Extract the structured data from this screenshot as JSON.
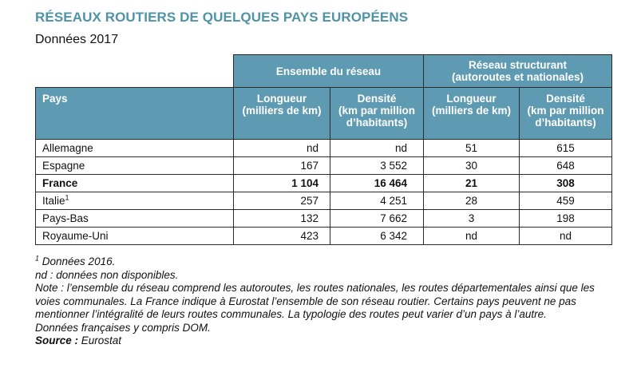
{
  "title": "RÉSEAUX ROUTIERS DE QUELQUES PAYS EUROPÉENS",
  "subtitle": "Données 2017",
  "table": {
    "group_headers": {
      "ensemble": "Ensemble du réseau",
      "structurant_line1": "Réseau structurant",
      "structurant_line2": "(autoroutes et nationales)"
    },
    "columns": {
      "pays": "Pays",
      "longueur_line1": "Longueur",
      "longueur_line2": "(milliers de km)",
      "densite_line1": "Densité",
      "densite_line2": "(km par million",
      "densite_line3": "d’habitants)"
    },
    "rows": [
      {
        "pays": "Allemagne",
        "sup": "",
        "ens_longueur": "nd",
        "ens_densite": "nd",
        "str_longueur": "51",
        "str_densite": "615"
      },
      {
        "pays": "Espagne",
        "sup": "",
        "ens_longueur": "167",
        "ens_densite": "3 552",
        "str_longueur": "30",
        "str_densite": "648"
      },
      {
        "pays": "France",
        "sup": "",
        "ens_longueur": "1 104",
        "ens_densite": "16 464",
        "str_longueur": "21",
        "str_densite": "308"
      },
      {
        "pays": "Italie",
        "sup": "1",
        "ens_longueur": "257",
        "ens_densite": "4 251",
        "str_longueur": "28",
        "str_densite": "459"
      },
      {
        "pays": "Pays-Bas",
        "sup": "",
        "ens_longueur": "132",
        "ens_densite": "7 662",
        "str_longueur": "3",
        "str_densite": "198"
      },
      {
        "pays": "Royaume-Uni",
        "sup": "",
        "ens_longueur": "423",
        "ens_densite": "6 342",
        "str_longueur": "nd",
        "str_densite": "nd"
      }
    ]
  },
  "notes": {
    "footnote1_sup": "1",
    "footnote1": " Données 2016.",
    "nd": "nd : données non disponibles.",
    "note": "Note : l’ensemble du réseau comprend les autoroutes, les routes nationales, les routes départementales ainsi que les voies communales. La France indique à Eurostat l’ensemble de son réseau routier. Certains pays peuvent ne pas mentionner l’intégralité de leurs routes communales. La typologie des routes peut varier d’un pays à l’autre.",
    "dom": "Données françaises y compris DOM.",
    "source_label": "Source :",
    "source_value": " Eurostat"
  }
}
